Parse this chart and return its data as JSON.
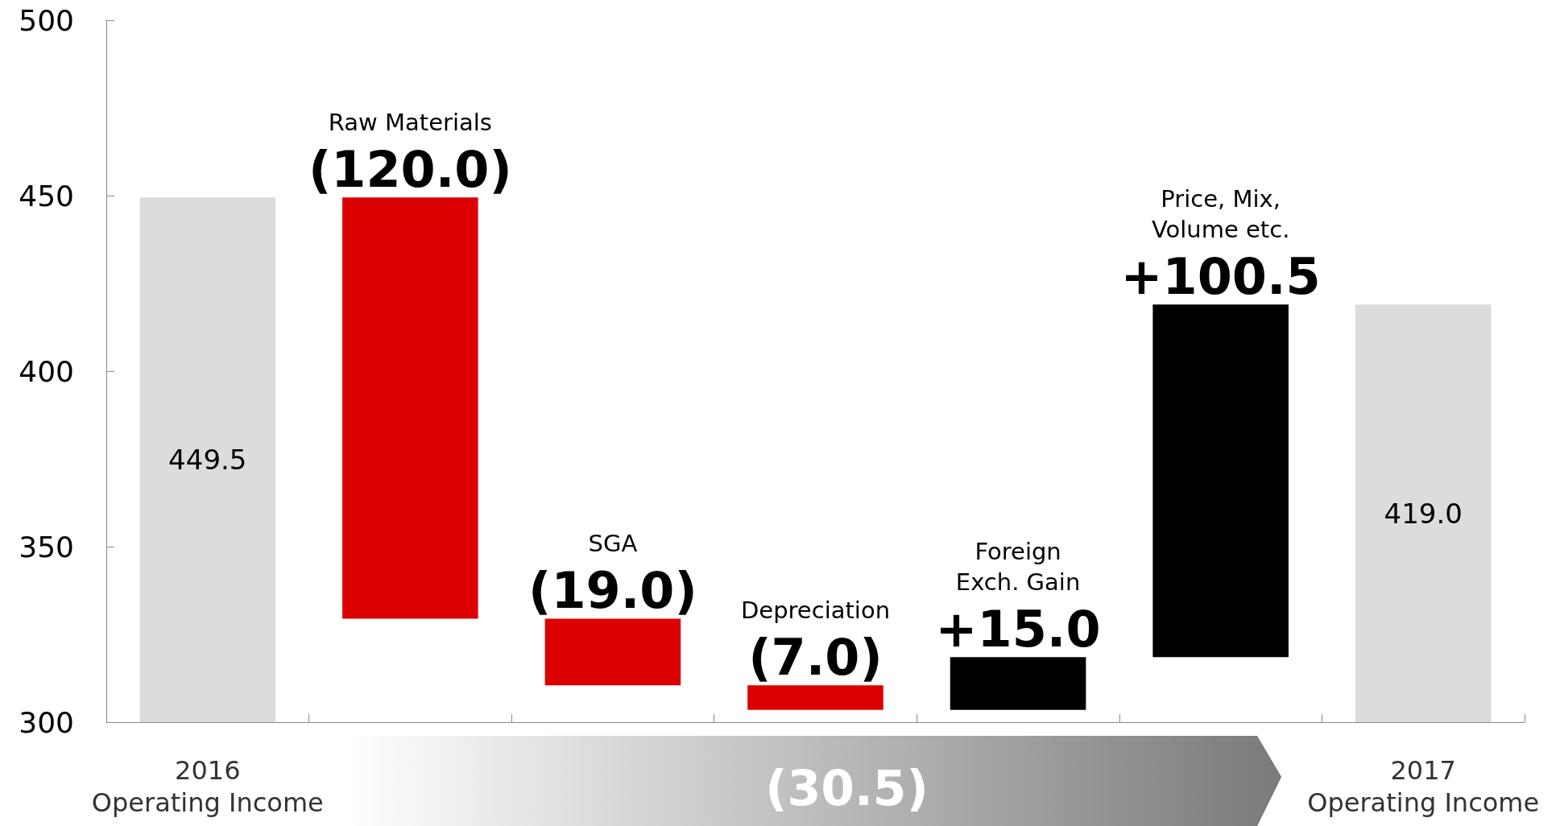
{
  "chart_data": {
    "type": "bar",
    "categories": [
      "2016\nOperating Income",
      "Raw Materials",
      "SGA",
      "Depreciation",
      "Foreign\nExch. Gain",
      "Price, Mix,\nVolume etc.",
      "2017\nOperating Income"
    ],
    "series": [
      {
        "color": "#dcdcdc",
        "values": [
          449.5,
          null,
          null,
          null,
          null,
          null,
          419.0
        ],
        "value_labels": [
          "449.5",
          null,
          null,
          null,
          null,
          null,
          "419.0"
        ]
      },
      {
        "values": [
          null,
          -120.0,
          -19.0,
          -7.0,
          15.0,
          100.5,
          null
        ],
        "base": [
          null,
          449.5,
          329.5,
          310.5,
          303.5,
          318.5,
          null
        ],
        "colors": [
          null,
          "#dd0000",
          "#dd0000",
          "#dd0000",
          "#000000",
          "#000000",
          null
        ],
        "value_labels": [
          null,
          "(120.0)",
          "(19.0)",
          "(7.0)",
          "+15.0",
          "+100.5",
          null
        ]
      }
    ],
    "ylim": [
      300,
      500
    ],
    "yticks": [
      300,
      350,
      400,
      450,
      500
    ],
    "grid": false,
    "annotations": [
      "(30.5)"
    ]
  }
}
